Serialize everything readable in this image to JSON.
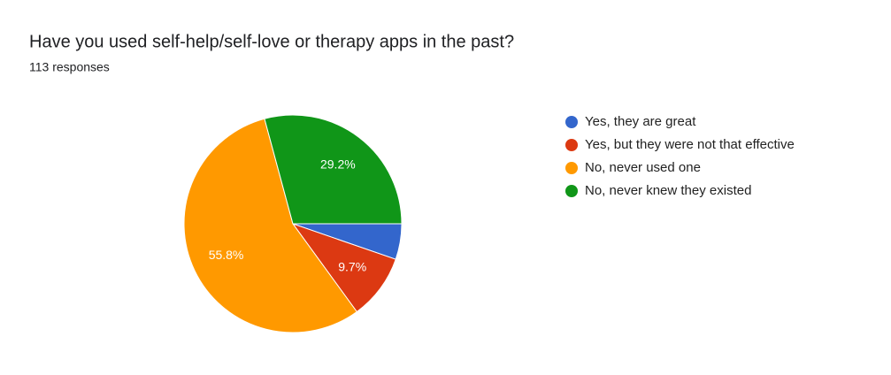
{
  "chart_data": {
    "type": "pie",
    "title": "Have you used self-help/self-love or therapy apps in the past?",
    "subtitle": "113 responses",
    "categories": [
      "Yes, they are great",
      "Yes, but they were not that effective",
      "No, never used one",
      "No, never knew they existed"
    ],
    "values": [
      5.3,
      9.7,
      55.8,
      29.2
    ],
    "value_labels": [
      null,
      "9.7%",
      "55.8%",
      "29.2%"
    ],
    "colors": [
      "#3366cc",
      "#dc3912",
      "#ff9900",
      "#109618"
    ],
    "legend": "right"
  }
}
